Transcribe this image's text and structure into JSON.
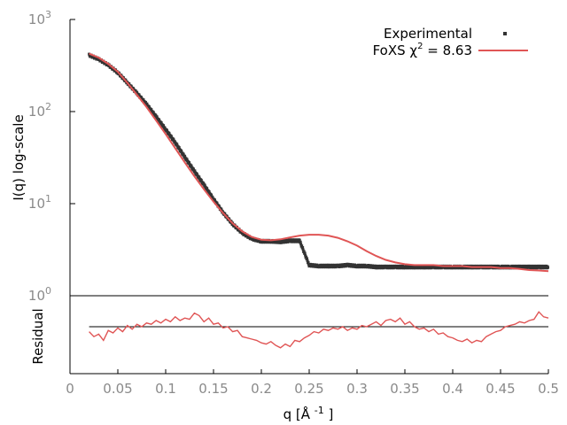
{
  "chart_data": [
    {
      "type": "line",
      "name": "main-panel",
      "ylabel": "I(q) log-scale",
      "yscale": "log",
      "ylim": [
        1,
        1000
      ],
      "xlim": [
        0,
        0.5
      ],
      "y_tick_labels": [
        {
          "base": "10",
          "exp": "0"
        },
        {
          "base": "10",
          "exp": "1"
        },
        {
          "base": "10",
          "exp": "2"
        },
        {
          "base": "10",
          "exp": "3"
        }
      ],
      "legend_position": "top-right",
      "series": [
        {
          "name": "Experimental",
          "style": "points",
          "color": "#333333",
          "x": [
            0.02,
            0.03,
            0.04,
            0.05,
            0.06,
            0.07,
            0.08,
            0.09,
            0.1,
            0.11,
            0.12,
            0.13,
            0.14,
            0.15,
            0.16,
            0.17,
            0.18,
            0.19,
            0.2,
            0.21,
            0.22,
            0.23,
            0.24,
            0.25,
            0.26,
            0.27,
            0.28,
            0.29,
            0.3,
            0.31,
            0.32,
            0.33,
            0.34,
            0.35,
            0.36,
            0.37,
            0.38,
            0.39,
            0.4,
            0.41,
            0.42,
            0.43,
            0.44,
            0.45,
            0.46,
            0.47,
            0.48,
            0.49,
            0.5
          ],
          "y": [
            410,
            370,
            320,
            265,
            205,
            158,
            120,
            88,
            64,
            46,
            32,
            22.5,
            16,
            11.2,
            8.0,
            6.0,
            4.8,
            4.15,
            3.9,
            3.9,
            3.85,
            3.95,
            3.95,
            2.15,
            2.1,
            2.1,
            2.1,
            2.15,
            2.1,
            2.1,
            2.05,
            2.05,
            2.05,
            2.05,
            2.05,
            2.05,
            2.05,
            2.05,
            2.05,
            2.05,
            2.05,
            2.05,
            2.05,
            2.05,
            2.05,
            2.05,
            2.05,
            2.05,
            2.05
          ]
        },
        {
          "name": "FoXS χ² = 8.63",
          "style": "line",
          "color": "#e05555",
          "x": [
            0.02,
            0.03,
            0.04,
            0.05,
            0.06,
            0.07,
            0.08,
            0.09,
            0.1,
            0.11,
            0.12,
            0.13,
            0.14,
            0.15,
            0.16,
            0.17,
            0.18,
            0.19,
            0.2,
            0.21,
            0.22,
            0.23,
            0.24,
            0.25,
            0.26,
            0.27,
            0.28,
            0.29,
            0.3,
            0.31,
            0.32,
            0.33,
            0.34,
            0.35,
            0.36,
            0.37,
            0.38,
            0.39,
            0.4,
            0.41,
            0.42,
            0.43,
            0.44,
            0.45,
            0.46,
            0.47,
            0.48,
            0.49,
            0.5
          ],
          "y": [
            425,
            385,
            330,
            270,
            205,
            152,
            112,
            80,
            57,
            40,
            28,
            19.8,
            14.3,
            10.5,
            7.9,
            6.1,
            5.0,
            4.35,
            4.05,
            4.0,
            4.1,
            4.3,
            4.5,
            4.6,
            4.6,
            4.5,
            4.25,
            3.9,
            3.5,
            3.05,
            2.7,
            2.45,
            2.3,
            2.2,
            2.15,
            2.15,
            2.15,
            2.1,
            2.1,
            2.1,
            2.05,
            2.05,
            2.05,
            2.0,
            2.0,
            1.95,
            1.9,
            1.88,
            1.85
          ]
        }
      ]
    },
    {
      "type": "line",
      "name": "residual-panel",
      "ylabel": "Residual",
      "xlabel": "q [Å -1 ]",
      "x_tick_labels": [
        "0",
        "0.05",
        "0.1",
        "0.15",
        "0.2",
        "0.25",
        "0.3",
        "0.35",
        "0.4",
        "0.45",
        "0.5"
      ],
      "xlim": [
        0,
        0.5
      ],
      "ylim": [
        -1,
        1
      ],
      "reference_line": 0,
      "series": [
        {
          "name": "",
          "color": "#e05555",
          "x": [
            0.02,
            0.025,
            0.03,
            0.035,
            0.04,
            0.045,
            0.05,
            0.055,
            0.06,
            0.065,
            0.07,
            0.075,
            0.08,
            0.085,
            0.09,
            0.095,
            0.1,
            0.105,
            0.11,
            0.115,
            0.12,
            0.125,
            0.13,
            0.135,
            0.14,
            0.145,
            0.15,
            0.155,
            0.16,
            0.165,
            0.17,
            0.175,
            0.18,
            0.185,
            0.19,
            0.195,
            0.2,
            0.205,
            0.21,
            0.215,
            0.22,
            0.225,
            0.23,
            0.235,
            0.24,
            0.245,
            0.25,
            0.255,
            0.26,
            0.265,
            0.27,
            0.275,
            0.28,
            0.285,
            0.29,
            0.295,
            0.3,
            0.305,
            0.31,
            0.315,
            0.32,
            0.325,
            0.33,
            0.335,
            0.34,
            0.345,
            0.35,
            0.355,
            0.36,
            0.365,
            0.37,
            0.375,
            0.38,
            0.385,
            0.39,
            0.395,
            0.4,
            0.405,
            0.41,
            0.415,
            0.42,
            0.425,
            0.43,
            0.435,
            0.44,
            0.445,
            0.45,
            0.455,
            0.46,
            0.465,
            0.47,
            0.475,
            0.48,
            0.485,
            0.49,
            0.495,
            0.5
          ],
          "values": [
            -0.2,
            -0.4,
            -0.3,
            -0.55,
            -0.15,
            -0.25,
            -0.05,
            -0.2,
            0.05,
            -0.1,
            0.1,
            0.0,
            0.15,
            0.1,
            0.25,
            0.15,
            0.3,
            0.2,
            0.4,
            0.25,
            0.35,
            0.3,
            0.55,
            0.45,
            0.2,
            0.35,
            0.1,
            0.15,
            -0.05,
            0.0,
            -0.2,
            -0.15,
            -0.4,
            -0.45,
            -0.5,
            -0.55,
            -0.65,
            -0.7,
            -0.6,
            -0.75,
            -0.85,
            -0.7,
            -0.8,
            -0.55,
            -0.6,
            -0.45,
            -0.35,
            -0.2,
            -0.25,
            -0.1,
            -0.15,
            -0.05,
            -0.1,
            0.0,
            -0.15,
            -0.05,
            -0.1,
            0.05,
            0.0,
            0.1,
            0.2,
            0.05,
            0.25,
            0.3,
            0.2,
            0.35,
            0.1,
            0.2,
            0.0,
            -0.1,
            -0.05,
            -0.2,
            -0.1,
            -0.3,
            -0.25,
            -0.4,
            -0.45,
            -0.55,
            -0.6,
            -0.5,
            -0.65,
            -0.55,
            -0.6,
            -0.4,
            -0.3,
            -0.2,
            -0.15,
            0.0,
            0.05,
            0.1,
            0.2,
            0.15,
            0.25,
            0.3,
            0.6,
            0.4,
            0.35
          ]
        }
      ]
    }
  ],
  "legend": {
    "experimental_label": "Experimental",
    "fit_label_prefix": "FoXS χ",
    "fit_label_sup": "2",
    "fit_label_suffix": " = 8.63"
  }
}
